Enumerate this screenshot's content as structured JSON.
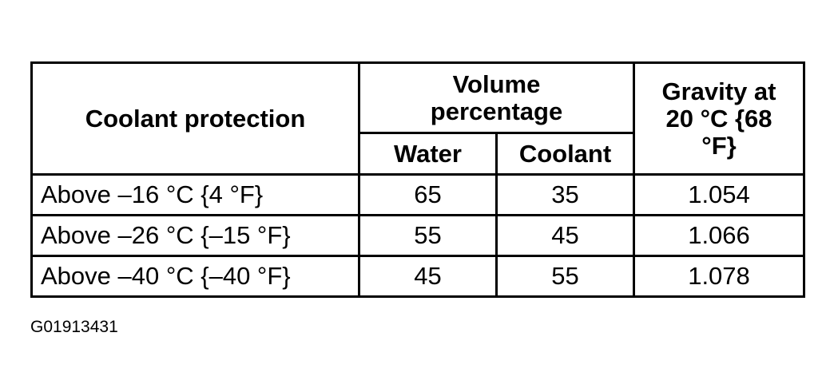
{
  "table": {
    "header": {
      "col1": "Coolant protection",
      "group": "Volume percentage",
      "sub1": "Water",
      "sub2": "Coolant",
      "col4": "Gravity at 20 °C {68 °F}"
    },
    "rows": [
      [
        "Above –16 °C {4 °F}",
        65,
        35,
        1.054
      ],
      [
        "Above –26 °C {–15 °F}",
        55,
        45,
        1.066
      ],
      [
        "Above –40 °C {–40 °F}",
        45,
        55,
        1.078
      ]
    ]
  },
  "caption": "G01913431"
}
